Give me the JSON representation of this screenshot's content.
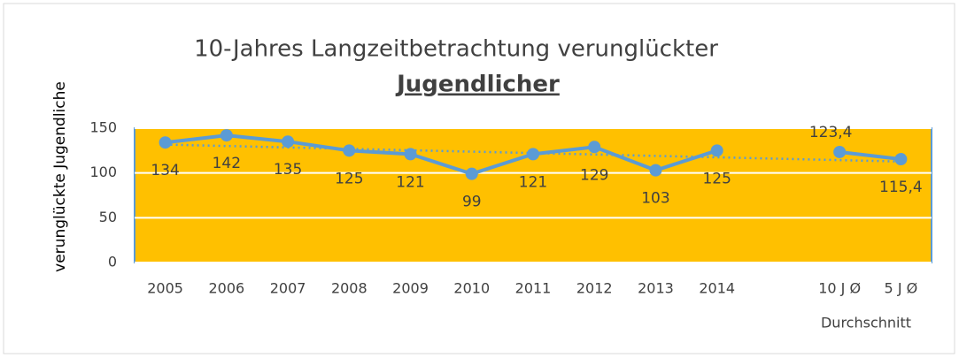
{
  "chart_data": {
    "type": "line",
    "title": "10-Jahres Langzeitbetrachtung verunglückter",
    "title_emphasis": "Jugendlicher",
    "y_label": "verunglückte Jugendliche",
    "x_group_label": "Durchschnitt",
    "categories": [
      "2005",
      "2006",
      "2007",
      "2008",
      "2009",
      "2010",
      "2011",
      "2012",
      "2013",
      "2014",
      null,
      "10 J Ø",
      "5 J Ø"
    ],
    "series": [
      {
        "name": "verunglückte Jugendliche",
        "color": "#5b9bd5",
        "values": [
          134,
          142,
          135,
          125,
          121,
          99,
          121,
          129,
          103,
          125,
          null,
          123.4,
          115.4
        ],
        "value_labels": [
          "134",
          "142",
          "135",
          "125",
          "121",
          "99",
          "121",
          "129",
          "103",
          "125",
          null,
          "123,4",
          "115,4"
        ]
      }
    ],
    "trendline": "linear",
    "plot_background": "#ffc000",
    "ylim": [
      0,
      150
    ],
    "yticks": [
      0,
      50,
      100,
      150
    ],
    "grid": true
  }
}
